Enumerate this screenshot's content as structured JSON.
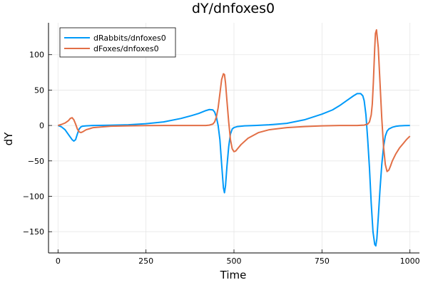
{
  "chart_data": {
    "type": "line",
    "title": "dY/dnfoxes0",
    "xlabel": "Time",
    "ylabel": "dY",
    "xlim": [
      -27,
      1027
    ],
    "ylim": [
      -180,
      145
    ],
    "xticks": [
      0,
      250,
      500,
      750,
      1000
    ],
    "yticks": [
      -150,
      -100,
      -50,
      0,
      50,
      100
    ],
    "xtick_labels": [
      "0",
      "250",
      "500",
      "750",
      "1000"
    ],
    "ytick_labels": [
      "−150",
      "−100",
      "−50",
      "0",
      "50",
      "100"
    ],
    "grid": true,
    "legend_position": "top-left",
    "series": [
      {
        "name": "dRabbits/dnfoxes0",
        "color": "#009af9",
        "x": [
          0,
          10,
          20,
          30,
          40,
          45,
          50,
          55,
          60,
          65,
          70,
          80,
          100,
          150,
          200,
          250,
          300,
          350,
          380,
          400,
          420,
          430,
          440,
          445,
          450,
          455,
          460,
          465,
          470,
          473,
          476,
          480,
          485,
          490,
          495,
          500,
          510,
          530,
          560,
          600,
          650,
          700,
          750,
          780,
          800,
          820,
          840,
          850,
          860,
          866,
          870,
          875,
          880,
          885,
          890,
          895,
          900,
          903,
          906,
          910,
          915,
          920,
          925,
          930,
          935,
          940,
          950,
          960,
          970,
          985,
          1000
        ],
        "y": [
          0,
          -2,
          -6,
          -13,
          -20,
          -22,
          -20,
          -12,
          -5,
          -2,
          -1,
          -0.5,
          0,
          0.3,
          1,
          2.5,
          5,
          10,
          14,
          17,
          21,
          22.5,
          22,
          19,
          12,
          0,
          -20,
          -55,
          -88,
          -95,
          -85,
          -58,
          -30,
          -12,
          -5,
          -3,
          -1.5,
          -0.5,
          0,
          1,
          3,
          8,
          16,
          22,
          28,
          35,
          42,
          45,
          45,
          42,
          35,
          15,
          -20,
          -60,
          -110,
          -150,
          -168,
          -170,
          -160,
          -130,
          -90,
          -55,
          -30,
          -15,
          -8,
          -5,
          -2.5,
          -1.2,
          -0.5,
          -0.1,
          0
        ]
      },
      {
        "name": "dFoxes/dnfoxes0",
        "color": "#e26f46",
        "x": [
          0,
          10,
          20,
          30,
          35,
          40,
          45,
          50,
          55,
          60,
          65,
          70,
          80,
          100,
          150,
          200,
          250,
          300,
          350,
          400,
          420,
          430,
          440,
          445,
          450,
          455,
          460,
          465,
          470,
          473,
          476,
          480,
          485,
          490,
          495,
          500,
          505,
          510,
          520,
          540,
          570,
          600,
          650,
          700,
          750,
          800,
          850,
          870,
          880,
          885,
          890,
          893,
          896,
          900,
          902,
          905,
          910,
          915,
          920,
          925,
          930,
          935,
          940,
          945,
          950,
          960,
          970,
          980,
          990,
          1000
        ],
        "y": [
          0,
          1.5,
          3.5,
          7,
          10,
          11,
          8,
          2,
          -5,
          -9,
          -10,
          -9,
          -6,
          -3,
          -1,
          -0.5,
          -0.2,
          0,
          0,
          0,
          0,
          0.5,
          2,
          5,
          12,
          25,
          45,
          65,
          73,
          72,
          60,
          35,
          5,
          -20,
          -33,
          -37,
          -36,
          -33,
          -27,
          -18,
          -10,
          -6,
          -3,
          -1.5,
          -0.5,
          0,
          0,
          0.5,
          2,
          5,
          15,
          30,
          60,
          110,
          130,
          135,
          110,
          60,
          10,
          -30,
          -55,
          -65,
          -63,
          -57,
          -50,
          -40,
          -32,
          -26,
          -20,
          -15
        ]
      }
    ]
  }
}
